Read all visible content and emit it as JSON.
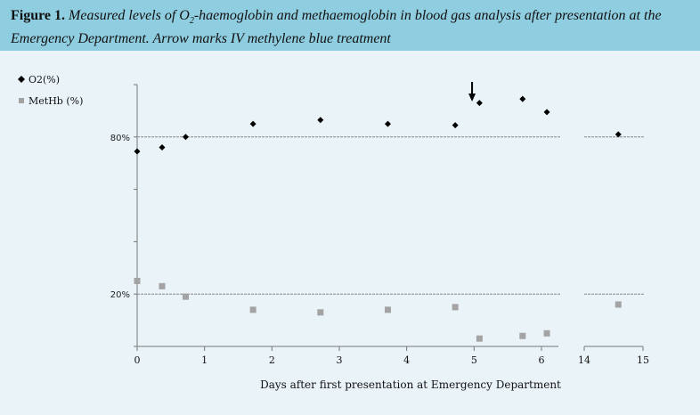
{
  "caption": {
    "label": "Figure 1.",
    "text_a": "Measured levels of O",
    "sub": "2",
    "text_b": "-haemoglobin and methaemoglobin in blood gas analysis after presentation at the Emergency Department. Arrow marks IV methylene blue treatment"
  },
  "colors": {
    "caption_bg": "#8fcde0",
    "panel_bg": "#e9f3f8",
    "o2": "#000000",
    "methb": "#a3a3a3",
    "refline": "#888888"
  },
  "chart_data": {
    "type": "scatter",
    "title": "",
    "xlabel": "Days after first presentation at Emergency Department",
    "ylabel": "",
    "x_segments": [
      {
        "xlim": [
          0,
          6.2
        ],
        "ticks": [
          0,
          1,
          2,
          3,
          4,
          5,
          6
        ]
      },
      {
        "xlim": [
          14,
          15
        ],
        "ticks": [
          14,
          15
        ]
      }
    ],
    "ylim": [
      0,
      100
    ],
    "y_ticks": [
      {
        "value": 80,
        "label": "80%"
      },
      {
        "value": 20,
        "label": "20%"
      }
    ],
    "reference_lines": [
      80,
      20
    ],
    "grid": false,
    "legend_position": "top-left",
    "series": [
      {
        "name": "O2(%)",
        "marker": "diamond",
        "points": [
          {
            "x": 0.0,
            "y": 74.5
          },
          {
            "x": 0.37,
            "y": 76
          },
          {
            "x": 0.72,
            "y": 80
          },
          {
            "x": 1.72,
            "y": 85
          },
          {
            "x": 2.72,
            "y": 86.5
          },
          {
            "x": 3.72,
            "y": 85
          },
          {
            "x": 4.72,
            "y": 84.5
          },
          {
            "x": 5.08,
            "y": 93
          },
          {
            "x": 5.72,
            "y": 94.5
          },
          {
            "x": 6.08,
            "y": 89.5
          },
          {
            "x": 14.58,
            "y": 81
          }
        ]
      },
      {
        "name": "MetHb (%)",
        "marker": "square",
        "points": [
          {
            "x": 0.0,
            "y": 25
          },
          {
            "x": 0.37,
            "y": 23
          },
          {
            "x": 0.72,
            "y": 19
          },
          {
            "x": 1.72,
            "y": 14
          },
          {
            "x": 2.72,
            "y": 13
          },
          {
            "x": 3.72,
            "y": 14
          },
          {
            "x": 4.72,
            "y": 15
          },
          {
            "x": 5.08,
            "y": 3
          },
          {
            "x": 5.72,
            "y": 4
          },
          {
            "x": 6.08,
            "y": 5
          },
          {
            "x": 14.58,
            "y": 16
          }
        ]
      }
    ],
    "annotations": [
      {
        "type": "arrow",
        "x": 4.97,
        "meaning": "IV methylene blue treatment"
      }
    ]
  }
}
